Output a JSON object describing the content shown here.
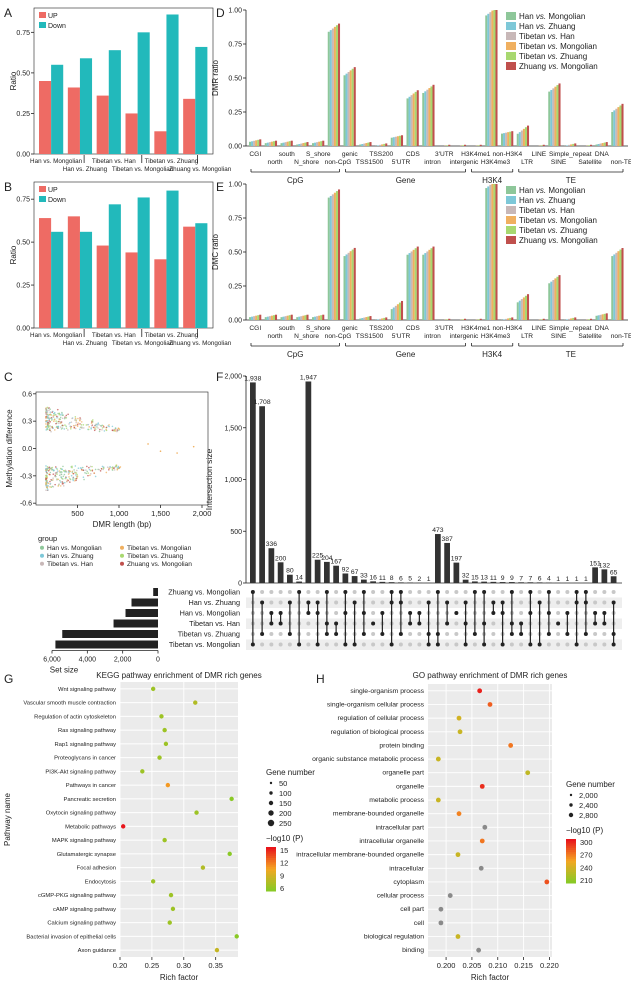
{
  "panels": {
    "A": "A",
    "B": "B",
    "C": "C",
    "D": "D",
    "E": "E",
    "F": "F",
    "G": "G",
    "H": "H"
  },
  "ratio_label": "Ratio",
  "colors": {
    "up": "#ee6b64",
    "down": "#22b9bb",
    "series": [
      "#8ec79a",
      "#7ec8d8",
      "#c8b8b8",
      "#f0b060",
      "#a8d870",
      "#c0504d"
    ],
    "pathway_low": "#8ac926",
    "pathway_mid": "#f5a623",
    "pathway_high": "#e8151b"
  },
  "chart_data": [
    {
      "id": "A",
      "type": "bar",
      "ylabel": "Ratio",
      "ylim": [
        0,
        0.9
      ],
      "yticks": [
        "0.00",
        "0.25",
        "0.50",
        "0.75"
      ],
      "legend": [
        "UP",
        "Down"
      ],
      "categories_top": [
        "Han vs. Mongolian",
        "Tibetan vs. Han",
        "Tibetan vs. Zhuang"
      ],
      "categories_bottom": [
        "Han vs. Zhuang",
        "Tibetan vs. Mongolian",
        "Zhuang vs. Mongolian"
      ],
      "series": [
        {
          "name": "UP",
          "values": [
            0.45,
            0.41,
            0.36,
            0.25,
            0.14,
            0.34
          ]
        },
        {
          "name": "Down",
          "values": [
            0.55,
            0.59,
            0.64,
            0.75,
            0.86,
            0.66
          ]
        }
      ]
    },
    {
      "id": "B",
      "type": "bar",
      "ylabel": "Ratio",
      "ylim": [
        0,
        0.85
      ],
      "yticks": [
        "0.00",
        "0.25",
        "0.50",
        "0.75"
      ],
      "legend": [
        "UP",
        "Down"
      ],
      "categories_top": [
        "Han vs. Mongolian",
        "Tibetan vs. Han",
        "Tibetan vs. Zhuang"
      ],
      "categories_bottom": [
        "Han vs. Zhuang",
        "Tibetan vs. Mongolian",
        "Zhuang vs. Mongolian"
      ],
      "series": [
        {
          "name": "UP",
          "values": [
            0.64,
            0.65,
            0.48,
            0.44,
            0.4,
            0.59
          ]
        },
        {
          "name": "Down",
          "values": [
            0.56,
            0.56,
            0.72,
            0.76,
            0.8,
            0.61
          ]
        }
      ]
    },
    {
      "id": "C",
      "type": "scatter",
      "xlabel": "DMR length (bp)",
      "ylabel": "Methylation difference",
      "xticks": [
        "500",
        "1,000",
        "1,500",
        "2,000"
      ],
      "yticks": [
        "0.6",
        "0.3",
        "0.0",
        "-0.3",
        "-0.6"
      ],
      "xlim": [
        0,
        2000
      ],
      "ylim": [
        -0.62,
        0.62
      ],
      "legend_title": "group",
      "legend": [
        "Han vs. Mongolian",
        "Han vs. Zhuang",
        "Tibetan vs. Han",
        "Tibetan vs. Mongolian",
        "Tibetan vs. Zhuang",
        "Zhuang vs. Mongolian"
      ]
    },
    {
      "id": "D",
      "type": "bar",
      "ylabel": "DMR ratio",
      "ylim": [
        0,
        1
      ],
      "yticks": [
        "0.00",
        "0.25",
        "0.50",
        "0.75",
        "1.00"
      ],
      "categories": [
        "CGI",
        "north",
        "south",
        "N_shore",
        "S_shore",
        "non-CpG",
        "genic",
        "TSS1500",
        "TSS200",
        "5'UTR",
        "CDS",
        "intron",
        "3'UTR",
        "intergenic",
        "H3K4me1",
        "H3K4me3",
        "non-H3K4",
        "LTR",
        "LINE",
        "SINE",
        "Simple_repeat",
        "Satellite",
        "DNA",
        "non-TE"
      ],
      "groups": [
        "CpG",
        "Gene",
        "H3K4",
        "TE"
      ],
      "legend": [
        "Han vs. Mongolian",
        "Han vs. Zhuang",
        "Tibetan vs. Han",
        "Tibetan vs. Mongolian",
        "Tibetan vs. Zhuang",
        "Zhuang vs. Mongolian"
      ],
      "values": [
        0.04,
        0.03,
        0.03,
        0.02,
        0.03,
        0.87,
        0.55,
        0.02,
        0.01,
        0.07,
        0.38,
        0.42,
        0.0,
        0.0,
        0.0,
        0.99,
        0.1,
        0.12,
        0.0,
        0.43,
        0.01,
        0.0,
        0.02,
        0.28
      ]
    },
    {
      "id": "E",
      "type": "bar",
      "ylabel": "DMC ratio",
      "ylim": [
        0,
        1
      ],
      "yticks": [
        "0.00",
        "0.25",
        "0.50",
        "0.75",
        "1.00"
      ],
      "categories": [
        "CGI",
        "north",
        "south",
        "N_shore",
        "S_shore",
        "non-CpG",
        "genic",
        "TSS1500",
        "TSS200",
        "5'UTR",
        "CDS",
        "intron",
        "3'UTR",
        "intergenic",
        "H3K4me1",
        "H3K4me3",
        "non-H3K4",
        "LTR",
        "LINE",
        "SINE",
        "Simple_repeat",
        "Satellite",
        "DNA",
        "non-TE"
      ],
      "groups": [
        "CpG",
        "Gene",
        "H3K4",
        "TE"
      ],
      "legend": [
        "Han vs. Mongolian",
        "Han vs. Zhuang",
        "Tibetan vs. Han",
        "Tibetan vs. Mongolian",
        "Tibetan vs. Zhuang",
        "Zhuang vs. Mongolian"
      ],
      "values": [
        0.03,
        0.03,
        0.03,
        0.03,
        0.03,
        0.93,
        0.5,
        0.02,
        0.01,
        0.11,
        0.51,
        0.51,
        0.0,
        0.0,
        0.0,
        1.0,
        0.01,
        0.16,
        0.0,
        0.3,
        0.01,
        0.0,
        0.04,
        0.5
      ]
    },
    {
      "id": "F",
      "type": "bar",
      "ylabel": "Intersection size",
      "yticks": [
        "0",
        "500",
        "1,000",
        "1,500",
        "2,000"
      ],
      "ylim": [
        0,
        2000
      ],
      "values": [
        1938,
        1708,
        336,
        200,
        80,
        14,
        1947,
        225,
        204,
        167,
        92,
        67,
        33,
        16,
        11,
        8,
        6,
        5,
        2,
        1,
        473,
        387,
        197,
        32,
        15,
        13,
        11,
        9,
        9,
        7,
        7,
        6,
        4,
        1,
        1,
        1,
        1,
        151,
        132,
        65
      ],
      "set_label": "Set size",
      "set_ticks": [
        "6,000",
        "4,000",
        "2,000",
        "0"
      ],
      "sets": [
        "Zhuang vs. Mongolian",
        "Han vs. Zhuang",
        "Han vs. Mongolian",
        "Tibetan vs. Han",
        "Tibetan vs. Zhuang",
        "Tibetan vs. Mongolian"
      ],
      "set_sizes": [
        280,
        1550,
        1900,
        2600,
        5600,
        6000
      ]
    },
    {
      "id": "G",
      "type": "scatter",
      "title": "KEGG pathway enrichment of DMR rich genes",
      "xlabel": "Rich factor",
      "ylabel": "Pathway name",
      "xticks": [
        "0.20",
        "0.25",
        "0.30",
        "0.35"
      ],
      "xlim": [
        0.2,
        0.385
      ],
      "categories": [
        "Wnt signaling pathway",
        "Vascular smooth muscle contraction",
        "Regulation of actin cytoskeleton",
        "Ras signaling pathway",
        "Rap1 signaling pathway",
        "Proteoglycans in cancer",
        "PI3K-Akt signaling pathway",
        "Pathways in cancer",
        "Pancreatic secretion",
        "Oxytocin signaling pathway",
        "Metabolic pathways",
        "MAPK signaling pathway",
        "Glutamatergic synapse",
        "Focal adhesion",
        "Endocytosis",
        "cGMP-PKG signaling pathway",
        "cAMP signaling pathway",
        "Calcium signaling pathway",
        "Bacterial invasion of epithelial cells",
        "Axon guidance"
      ],
      "x": [
        0.252,
        0.318,
        0.265,
        0.27,
        0.272,
        0.262,
        0.235,
        0.275,
        0.375,
        0.32,
        0.205,
        0.27,
        0.372,
        0.33,
        0.252,
        0.28,
        0.283,
        0.278,
        0.383,
        0.352
      ],
      "neglogp": [
        6,
        7,
        6,
        6,
        6,
        6,
        6,
        11,
        5,
        6,
        16,
        6,
        5,
        7,
        6,
        6,
        6,
        6,
        5,
        8
      ],
      "size_title": "Gene number",
      "size_legend": [
        "50",
        "100",
        "150",
        "200",
        "250"
      ],
      "color_title": "−log10 (P)",
      "color_ticks": [
        "15",
        "12",
        "9",
        "6"
      ]
    },
    {
      "id": "H",
      "type": "scatter",
      "title": "GO pathway enrichment of DMR rich genes",
      "xlabel": "Rich factor",
      "xticks": [
        "0.200",
        "0.205",
        "0.210",
        "0.215",
        "0.220"
      ],
      "xlim": [
        0.1965,
        0.2205
      ],
      "categories": [
        "single-organism process",
        "single-organism cellular process",
        "regulation of cellular process",
        "regulation of biological process",
        "protein binding",
        "organic substance metabolic process",
        "organelle part",
        "organelle",
        "metabolic process",
        "membrane-bounded organelle",
        "intracellular part",
        "intracellular organelle",
        "intracellular membrane-bounded organelle",
        "intracellular",
        "cytoplasm",
        "cellular process",
        "cell part",
        "cell",
        "biological regulation",
        "binding"
      ],
      "x": [
        0.2065,
        0.2085,
        0.2025,
        0.2027,
        0.2125,
        0.1985,
        0.2158,
        0.207,
        0.1985,
        0.2025,
        0.2075,
        0.207,
        0.2023,
        0.2068,
        0.2195,
        0.2008,
        0.199,
        0.199,
        0.2023,
        0.2063
      ],
      "neglogp": [
        295,
        270,
        220,
        215,
        260,
        215,
        210,
        290,
        215,
        255,
        180,
        260,
        215,
        185,
        275,
        180,
        180,
        180,
        215,
        185
      ],
      "size_title": "Gene number",
      "size_legend": [
        "2,000",
        "2,400",
        "2,800"
      ],
      "color_title": "−log10 (P)",
      "color_ticks": [
        "300",
        "270",
        "240",
        "210"
      ]
    }
  ]
}
